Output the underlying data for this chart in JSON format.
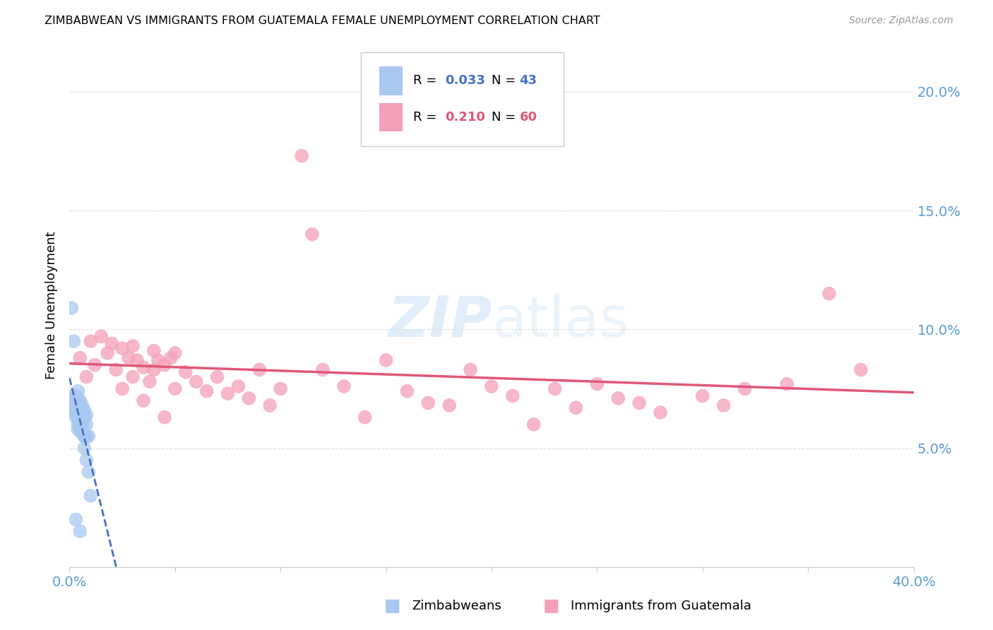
{
  "title": "ZIMBABWEAN VS IMMIGRANTS FROM GUATEMALA FEMALE UNEMPLOYMENT CORRELATION CHART",
  "source": "Source: ZipAtlas.com",
  "ylabel": "Female Unemployment",
  "x_min": 0.0,
  "x_max": 0.4,
  "y_min": 0.0,
  "y_max": 0.22,
  "zim_R": 0.033,
  "zim_N": 43,
  "guat_R": 0.21,
  "guat_N": 60,
  "zim_color": "#a8c8f0",
  "guat_color": "#f4a0b8",
  "zim_line_color": "#4472c4",
  "guat_line_color": "#e05878",
  "background_color": "#ffffff",
  "zim_x": [
    0.001,
    0.002,
    0.002,
    0.002,
    0.002,
    0.003,
    0.003,
    0.003,
    0.003,
    0.003,
    0.003,
    0.004,
    0.004,
    0.004,
    0.004,
    0.004,
    0.004,
    0.004,
    0.005,
    0.005,
    0.005,
    0.005,
    0.005,
    0.005,
    0.006,
    0.006,
    0.006,
    0.006,
    0.006,
    0.007,
    0.007,
    0.007,
    0.007,
    0.008,
    0.008,
    0.008,
    0.008,
    0.009,
    0.009,
    0.01,
    0.003,
    0.005,
    0.007
  ],
  "zim_y": [
    0.109,
    0.095,
    0.072,
    0.068,
    0.065,
    0.072,
    0.07,
    0.068,
    0.066,
    0.065,
    0.063,
    0.074,
    0.071,
    0.068,
    0.065,
    0.063,
    0.06,
    0.058,
    0.07,
    0.067,
    0.064,
    0.062,
    0.06,
    0.057,
    0.068,
    0.065,
    0.062,
    0.059,
    0.057,
    0.066,
    0.063,
    0.055,
    0.05,
    0.064,
    0.06,
    0.055,
    0.045,
    0.055,
    0.04,
    0.03,
    0.02,
    0.015,
    0.055
  ],
  "guat_x": [
    0.005,
    0.008,
    0.01,
    0.012,
    0.015,
    0.018,
    0.02,
    0.022,
    0.025,
    0.025,
    0.028,
    0.03,
    0.03,
    0.032,
    0.035,
    0.035,
    0.038,
    0.04,
    0.04,
    0.042,
    0.045,
    0.045,
    0.048,
    0.05,
    0.05,
    0.055,
    0.06,
    0.065,
    0.07,
    0.075,
    0.08,
    0.085,
    0.09,
    0.095,
    0.1,
    0.11,
    0.115,
    0.12,
    0.13,
    0.14,
    0.15,
    0.16,
    0.17,
    0.18,
    0.19,
    0.2,
    0.21,
    0.22,
    0.23,
    0.24,
    0.25,
    0.26,
    0.27,
    0.28,
    0.3,
    0.31,
    0.32,
    0.34,
    0.36,
    0.375
  ],
  "guat_y": [
    0.088,
    0.08,
    0.095,
    0.085,
    0.097,
    0.09,
    0.094,
    0.083,
    0.092,
    0.075,
    0.088,
    0.08,
    0.093,
    0.087,
    0.084,
    0.07,
    0.078,
    0.091,
    0.083,
    0.087,
    0.085,
    0.063,
    0.088,
    0.075,
    0.09,
    0.082,
    0.078,
    0.074,
    0.08,
    0.073,
    0.076,
    0.071,
    0.083,
    0.068,
    0.075,
    0.173,
    0.14,
    0.083,
    0.076,
    0.063,
    0.087,
    0.074,
    0.069,
    0.068,
    0.083,
    0.076,
    0.072,
    0.06,
    0.075,
    0.067,
    0.077,
    0.071,
    0.069,
    0.065,
    0.072,
    0.068,
    0.075,
    0.077,
    0.115,
    0.083
  ]
}
